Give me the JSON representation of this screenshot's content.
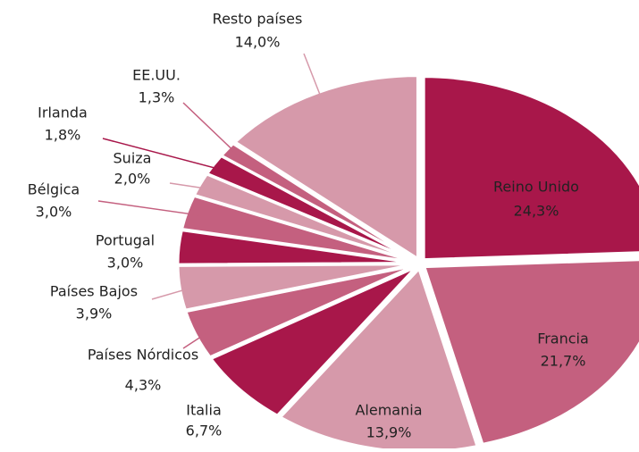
{
  "chart_data": {
    "type": "pie",
    "categories": [
      "Reino Unido",
      "Francia",
      "Alemania",
      "Italia",
      "Países Nórdicos",
      "Países Bajos",
      "Portugal",
      "Bélgica",
      "Suiza",
      "Irlanda",
      "EE.UU.",
      "Resto países"
    ],
    "values": [
      24.3,
      21.7,
      13.9,
      6.7,
      4.3,
      3.9,
      3.0,
      3.0,
      2.0,
      1.8,
      1.3,
      14.0
    ],
    "value_labels": [
      "24,3%",
      "21,7%",
      "13,9%",
      "6,7%",
      "4,3%",
      "3,9%",
      "3,0%",
      "3,0%",
      "2,0%",
      "1,8%",
      "1,3%",
      "14,0%"
    ],
    "colors": [
      "#a8174a",
      "#c4607f",
      "#d699aa",
      "#a8174a",
      "#c4607f",
      "#d699aa",
      "#a8174a",
      "#c4607f",
      "#d699aa",
      "#a8174a",
      "#c4607f",
      "#d699aa"
    ]
  }
}
